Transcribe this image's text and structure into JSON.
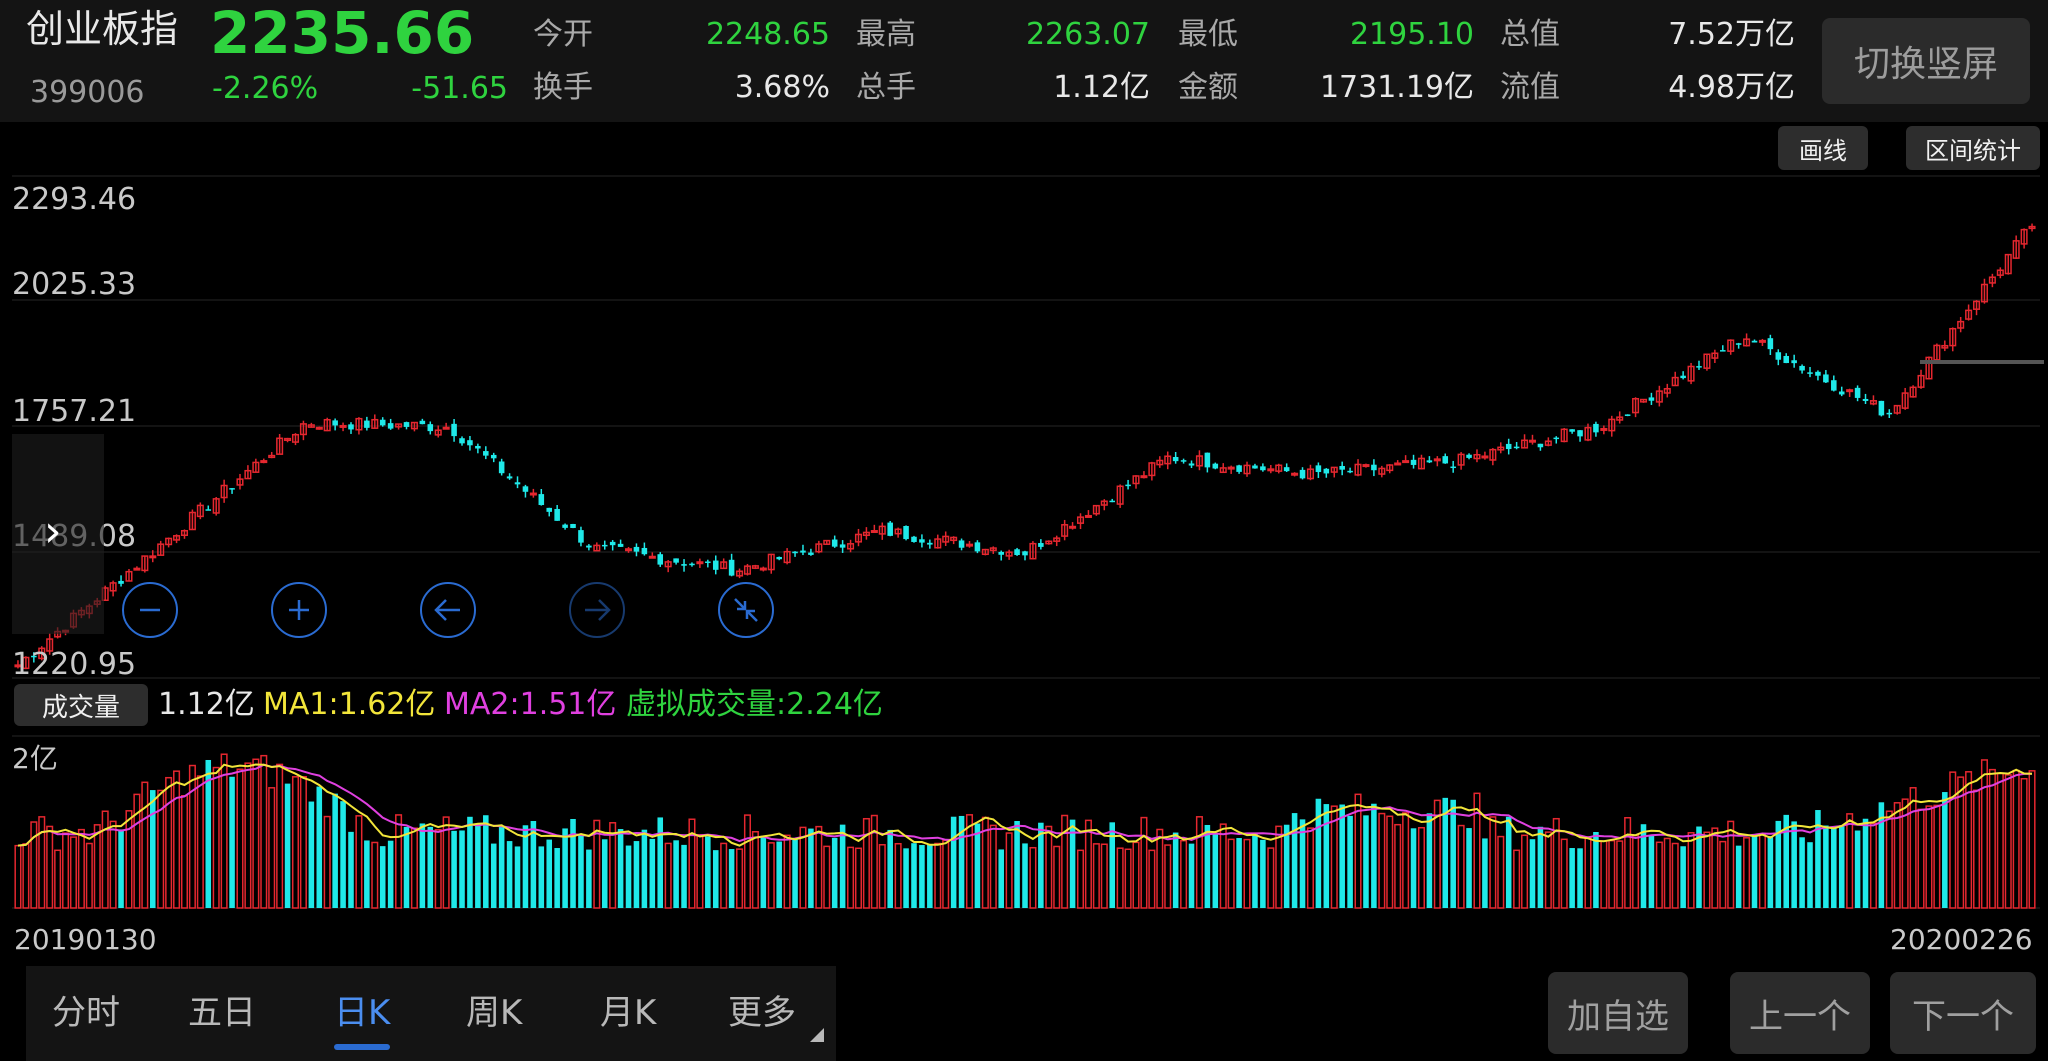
{
  "header": {
    "name": "创业板指",
    "code": "399006",
    "price": "2235.66",
    "change_pct": "-2.26%",
    "change_abs": "-51.65",
    "fields": [
      {
        "label": "今开",
        "value": "2248.65",
        "color": "green"
      },
      {
        "label": "最高",
        "value": "2263.07",
        "color": "green"
      },
      {
        "label": "最低",
        "value": "2195.10",
        "color": "green"
      },
      {
        "label": "总值",
        "value": "7.52万亿",
        "color": "white"
      },
      {
        "label": "换手",
        "value": "3.68%",
        "color": "white"
      },
      {
        "label": "总手",
        "value": "1.12亿",
        "color": "white"
      },
      {
        "label": "金额",
        "value": "1731.19亿",
        "color": "white"
      },
      {
        "label": "流值",
        "value": "4.98万亿",
        "color": "white"
      }
    ],
    "switch_label": "切换竖屏"
  },
  "tools": {
    "draw_label": "画线",
    "range_label": "区间统计"
  },
  "price_axis": [
    "2293.46",
    "2025.33",
    "1757.21",
    "1489.08",
    "1220.95"
  ],
  "volume_bar": {
    "button": "成交量",
    "current": "1.12亿",
    "ma1": "MA1:1.62亿",
    "ma2": "MA2:1.51亿",
    "virtual": "虚拟成交量:2.24亿"
  },
  "volume_axis": "2亿",
  "dates": {
    "start": "20190130",
    "end": "20200226"
  },
  "tabs": [
    "分时",
    "五日",
    "日K",
    "周K",
    "月K",
    "更多"
  ],
  "active_tab": "日K",
  "actions": {
    "add": "加自选",
    "prev": "上一个",
    "next": "下一个"
  },
  "colors": {
    "up": "#e5272f",
    "down": "#1fe9e9",
    "ma1": "#f2e53a",
    "ma2": "#e040e0",
    "accent": "#2a6bd1"
  },
  "chart_data": {
    "type": "candlestick",
    "price_ylim": [
      1220.95,
      2293.46
    ],
    "volume_unit": "亿",
    "trend_keypoints": [
      {
        "date": "20190130",
        "close": 1221
      },
      {
        "date": "20190225",
        "close": 1500
      },
      {
        "date": "20190308",
        "close": 1780
      },
      {
        "date": "20190404",
        "close": 1770
      },
      {
        "date": "20190506",
        "close": 1490
      },
      {
        "date": "20190606",
        "close": 1440
      },
      {
        "date": "20190704",
        "close": 1530
      },
      {
        "date": "20190815",
        "close": 1480
      },
      {
        "date": "20190912",
        "close": 1700
      },
      {
        "date": "20191015",
        "close": 1660
      },
      {
        "date": "20191115",
        "close": 1690
      },
      {
        "date": "20191216",
        "close": 1770
      },
      {
        "date": "20200113",
        "close": 1980
      },
      {
        "date": "20200203",
        "close": 1800
      },
      {
        "date": "20200226",
        "close": 2235.66
      }
    ]
  }
}
